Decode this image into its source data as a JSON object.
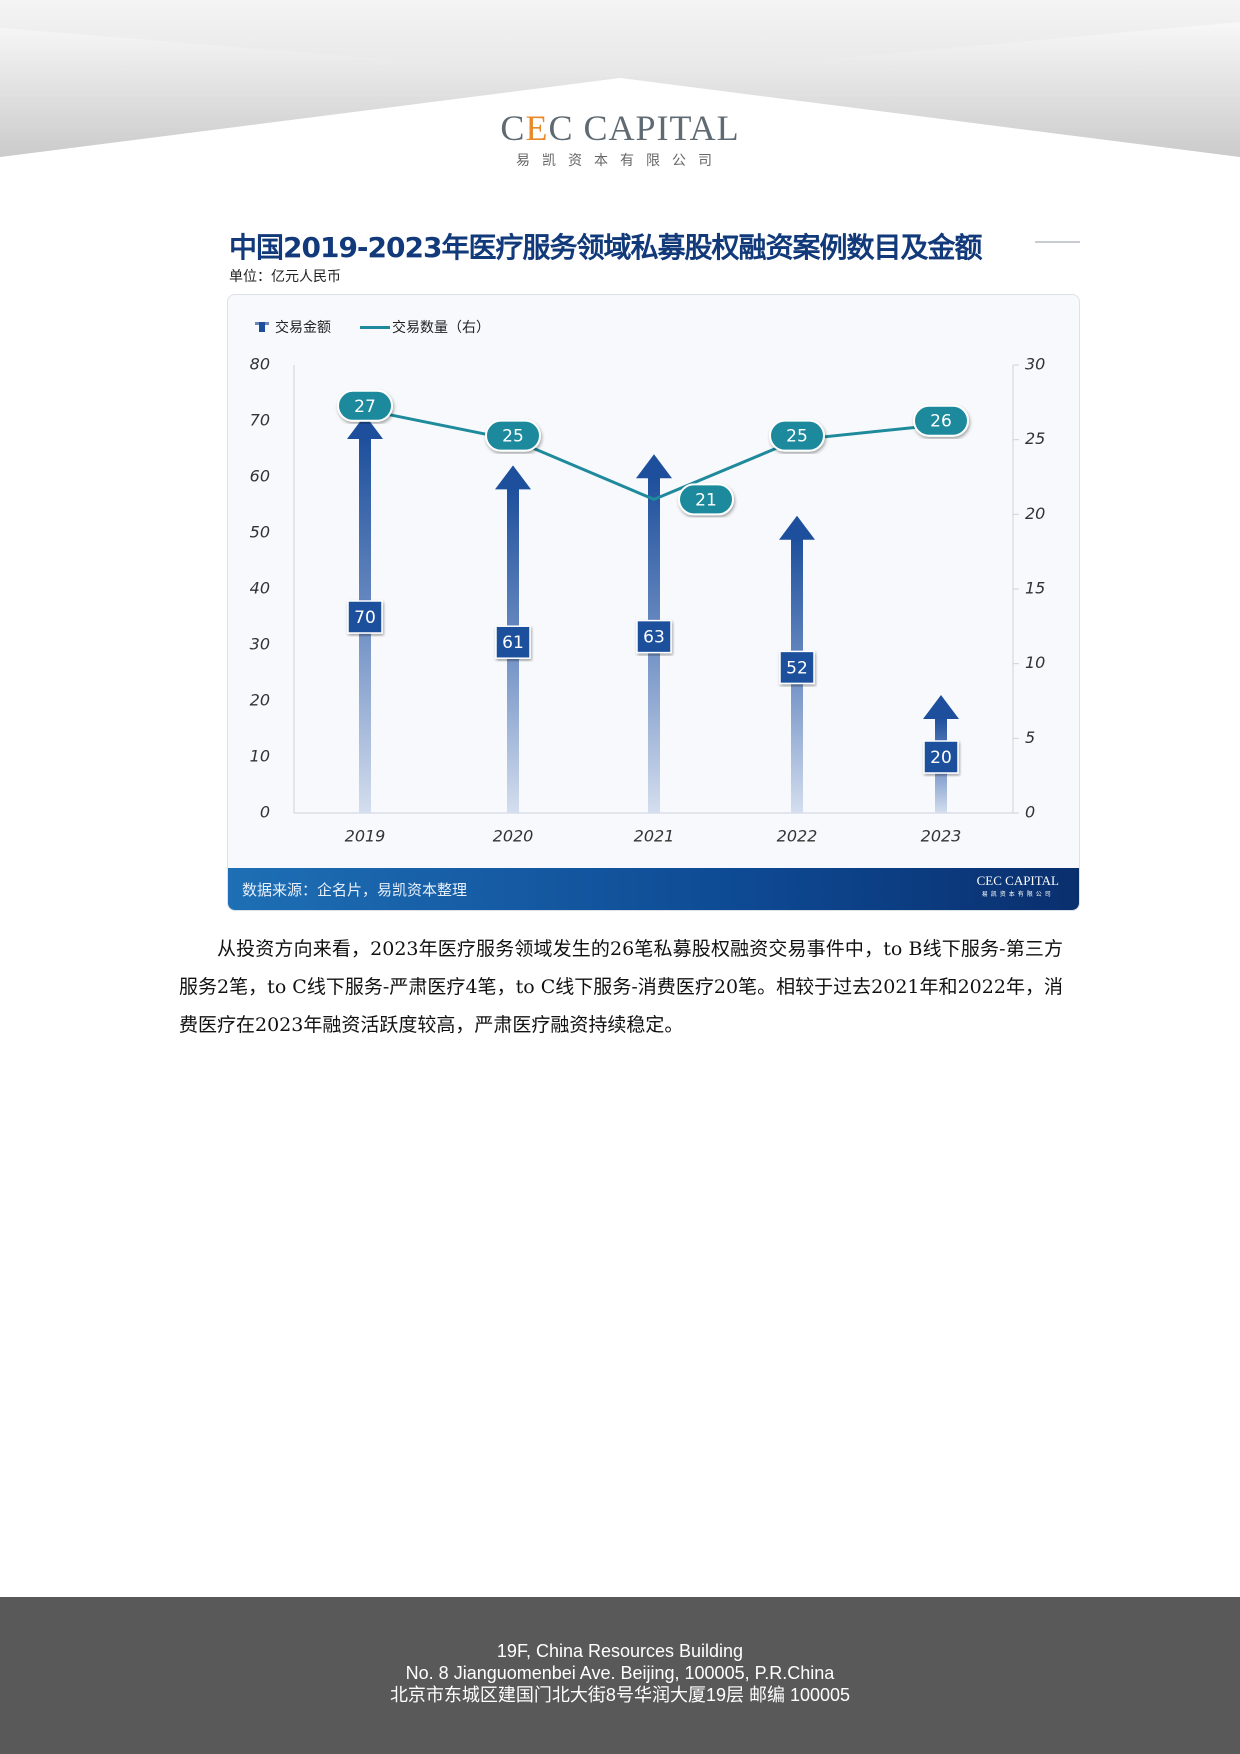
{
  "header": {
    "logo_en_prefix": "C",
    "logo_en_accent": "E",
    "logo_en_suffix": "C CAPITAL",
    "logo_cn": "易凯资本有限公司"
  },
  "title": "中国2019-2023年医疗服务领域私募股权融资案例数目及金额",
  "unit": "单位：亿元人民币",
  "source": "数据来源：企名片，易凯资本整理",
  "source_logo": {
    "en": "CEC CAPITAL",
    "cn": "易凯资本有限公司"
  },
  "chart_data": {
    "type": "bar+line",
    "categories": [
      "2019",
      "2020",
      "2021",
      "2022",
      "2023"
    ],
    "series": [
      {
        "name": "交易金额",
        "type": "bar",
        "axis": "left",
        "values": [
          70,
          61,
          63,
          52,
          20
        ],
        "color": "#1d4f9c"
      },
      {
        "name": "交易数量（右）",
        "type": "line",
        "axis": "right",
        "values": [
          27,
          25,
          21,
          25,
          26
        ],
        "color": "#1e8a9c"
      }
    ],
    "y_left": {
      "min": 0,
      "max": 80,
      "ticks": [
        0,
        10,
        20,
        30,
        40,
        50,
        60,
        70,
        80
      ]
    },
    "y_right": {
      "min": 0,
      "max": 30,
      "ticks": [
        0,
        5,
        10,
        15,
        20,
        25,
        30
      ]
    },
    "legend": "top-left",
    "grid": false
  },
  "paragraph": "从投资方向来看，2023年医疗服务领域发生的26笔私募股权融资交易事件中，to B线下服务-第三方服务2笔，to C线下服务-严肃医疗4笔，to C线下服务-消费医疗20笔。相较于过去2021年和2022年，消费医疗在2023年融资活跃度较高，严肃医疗融资持续稳定。",
  "footer": {
    "line1": "19F, China Resources Building",
    "line2": "No. 8 Jianguomenbei Ave. Beijing, 100005, P.R.China",
    "line3": "北京市东城区建国门北大街8号华润大厦19层 邮编 100005"
  }
}
